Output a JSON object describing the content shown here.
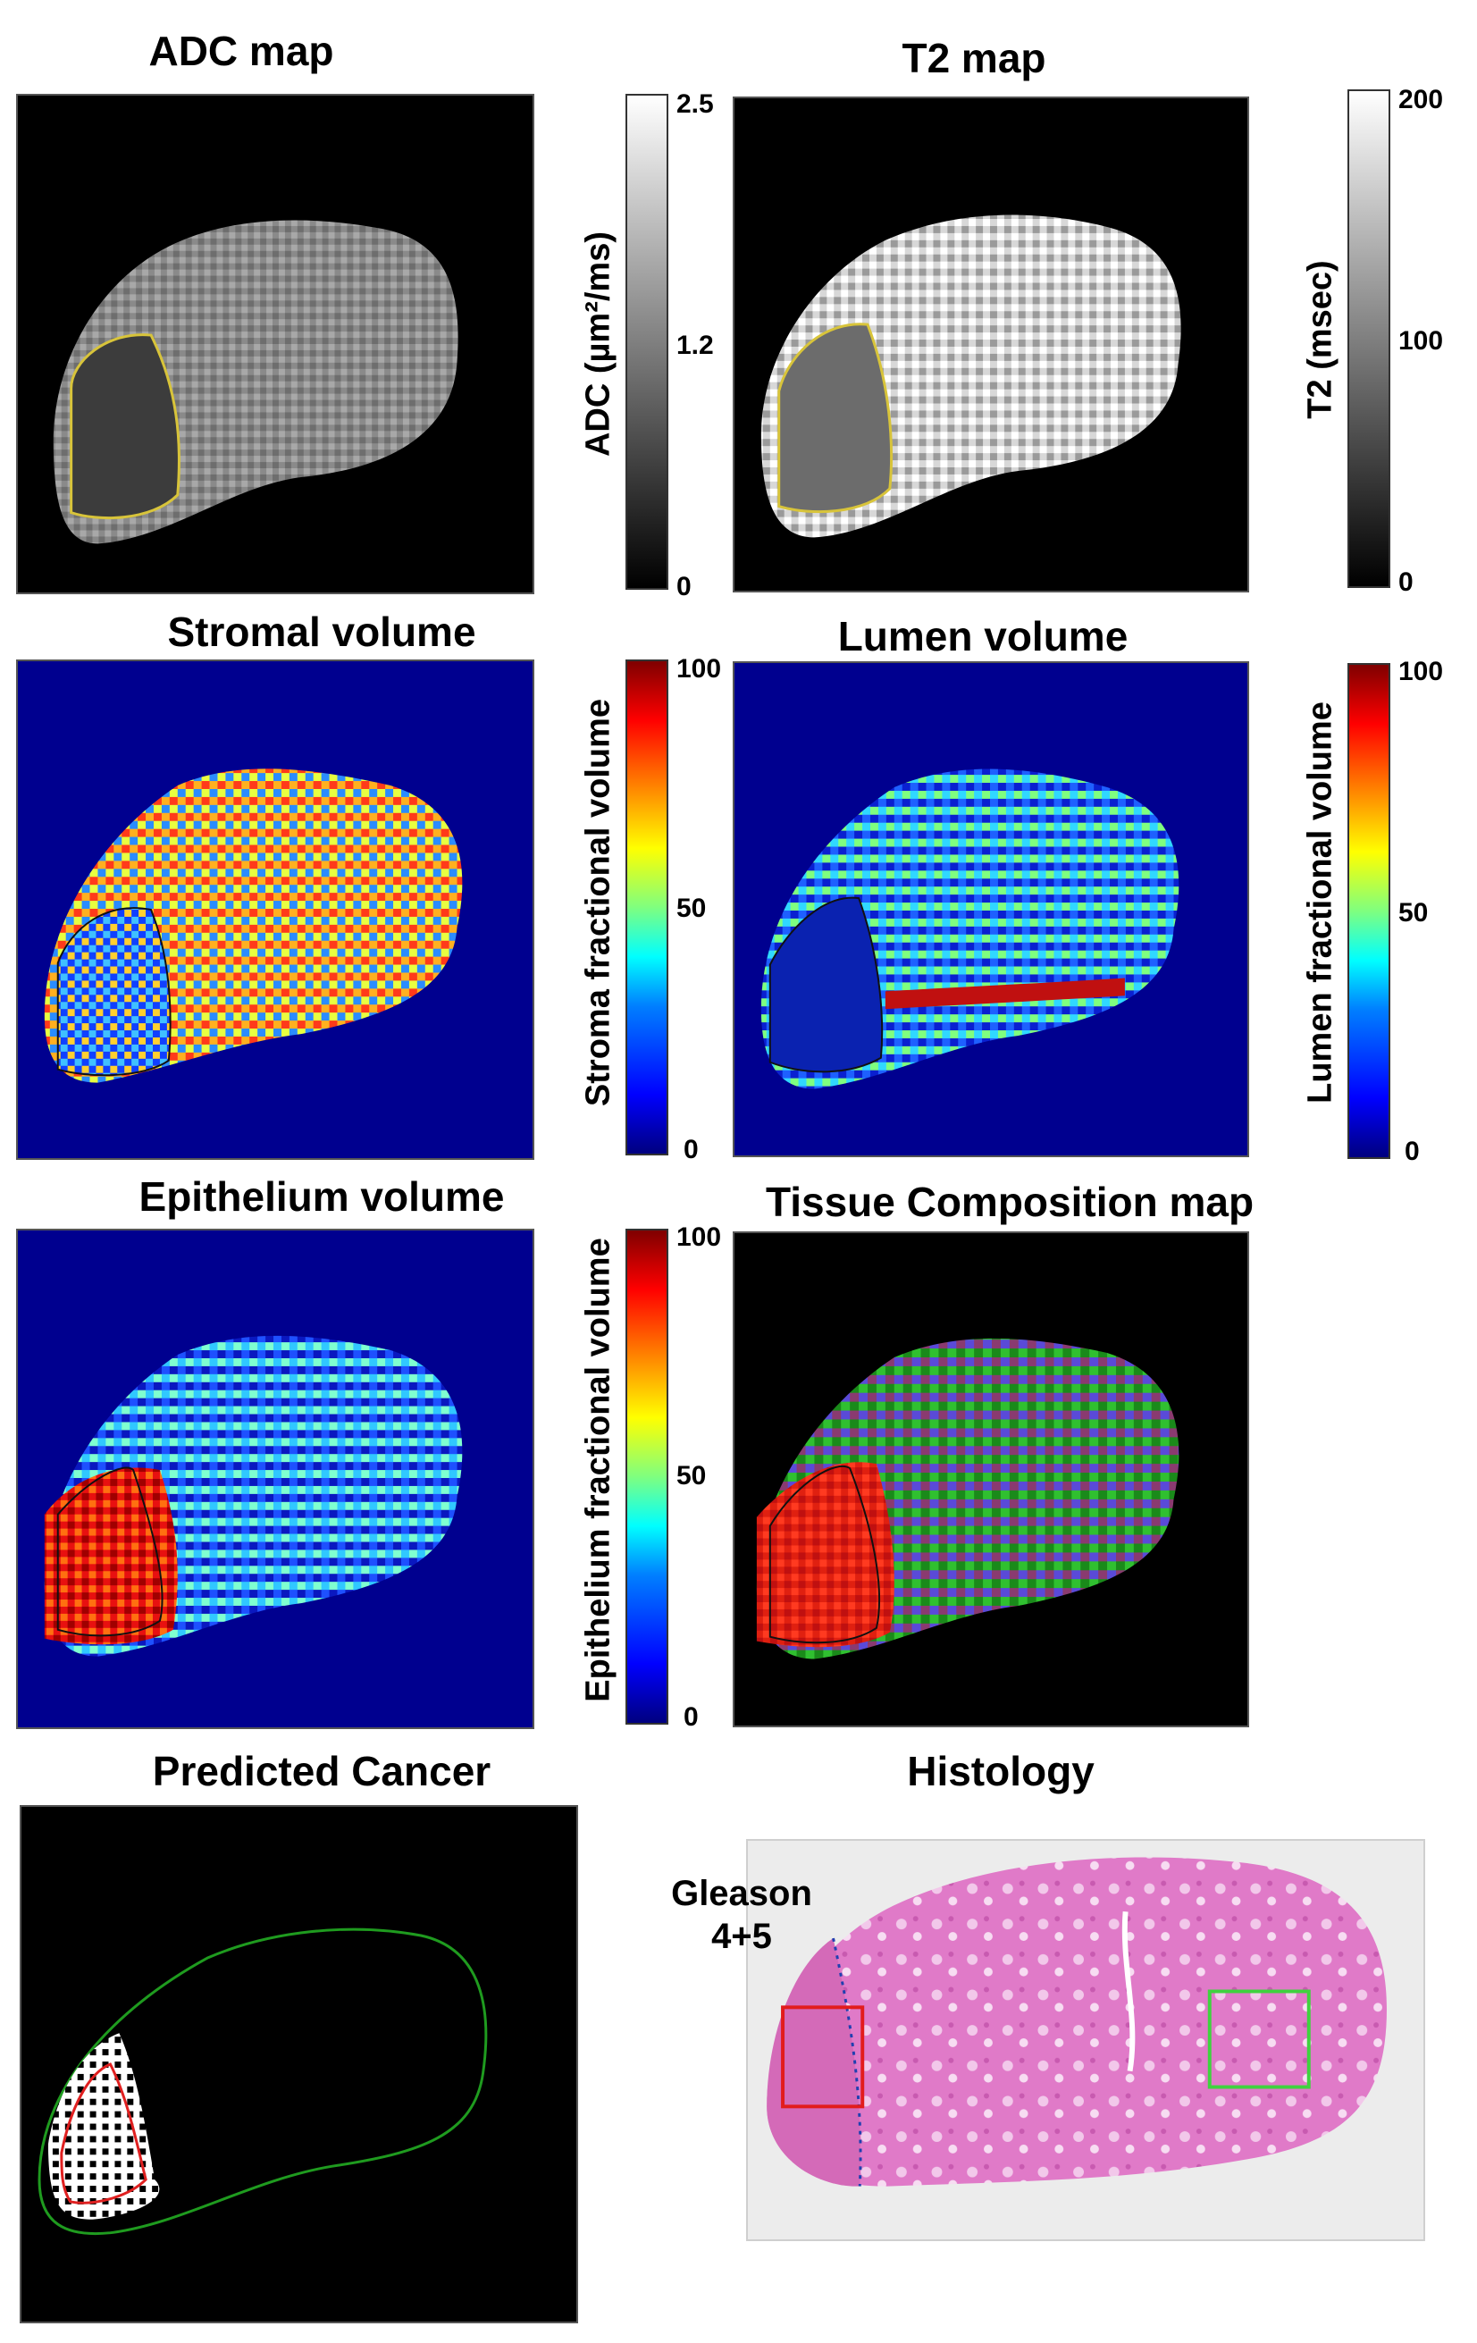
{
  "panels": {
    "adc": {
      "title": "ADC map",
      "colorbar": {
        "label": "ADC (µm²/ms)",
        "ticks": [
          "2.5",
          "1.2",
          "0"
        ],
        "scale": "gray"
      }
    },
    "t2": {
      "title": "T2 map",
      "colorbar": {
        "label": "T2 (msec)",
        "ticks": [
          "200",
          "100",
          "0"
        ],
        "scale": "gray"
      }
    },
    "stroma": {
      "title": "Stromal volume",
      "colorbar": {
        "label": "Stroma fractional volume",
        "ticks": [
          "100",
          "50",
          "0"
        ],
        "scale": "jet"
      }
    },
    "lumen": {
      "title": "Lumen volume",
      "colorbar": {
        "label": "Lumen fractional volume",
        "ticks": [
          "100",
          "50",
          "0"
        ],
        "scale": "jet"
      }
    },
    "epithelium": {
      "title": "Epithelium volume",
      "colorbar": {
        "label": "Epithelium fractional volume",
        "ticks": [
          "100",
          "50",
          "0"
        ],
        "scale": "jet"
      }
    },
    "composition": {
      "title": "Tissue Composition map"
    },
    "predicted": {
      "title": "Predicted Cancer"
    },
    "histology": {
      "title": "Histology",
      "annotation": "Gleason\n4+5"
    }
  },
  "colors": {
    "adc_roi": "#d8c43a",
    "param_roi": "#111111",
    "prostate_outline": "#1f9b1f",
    "cancer_outline": "#e02020",
    "histology_tumor_box": "#e21c1c",
    "histology_benign_box": "#3fd23f",
    "field_blue": "#00008f",
    "histology_pink": "#e07ac8"
  }
}
